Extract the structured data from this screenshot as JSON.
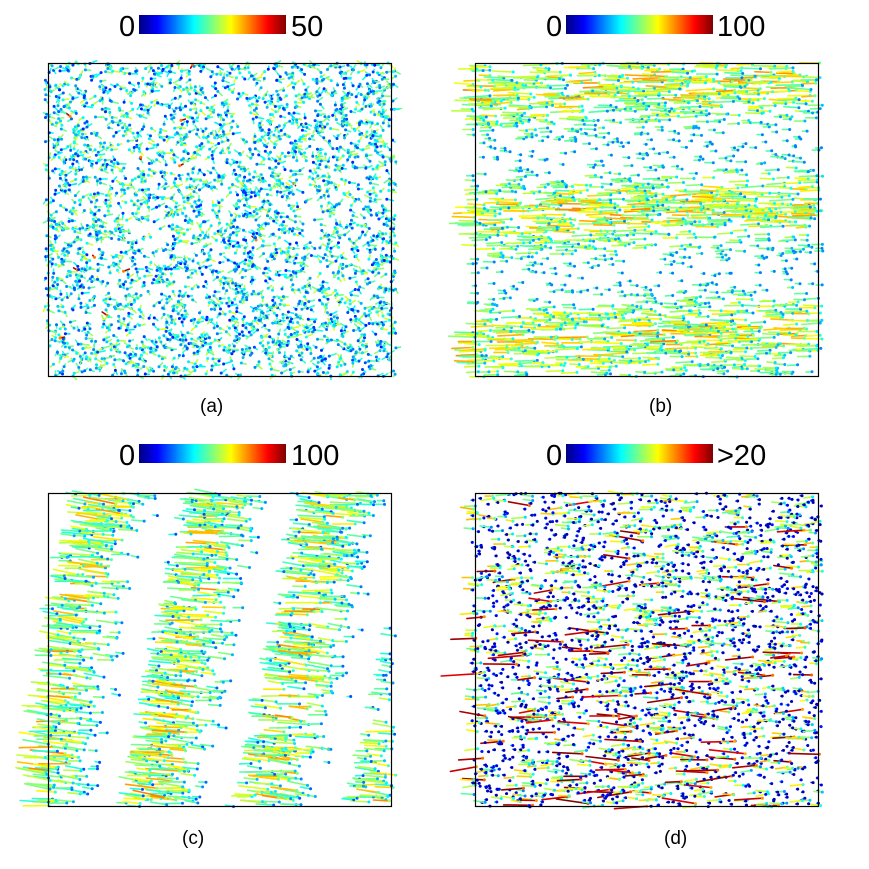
{
  "panels": [
    {
      "id": "a",
      "caption": "(a)",
      "scale_min": "0",
      "scale_max": "50",
      "pattern": "uniform",
      "density": 2800
    },
    {
      "id": "b",
      "caption": "(b)",
      "scale_min": "0",
      "scale_max": "100",
      "pattern": "lanes",
      "density": 2600
    },
    {
      "id": "c",
      "caption": "(c)",
      "scale_min": "0",
      "scale_max": "100",
      "pattern": "columns",
      "density": 2400
    },
    {
      "id": "d",
      "caption": "(d)",
      "scale_min": "0",
      "scale_max": ">20",
      "pattern": "sparse",
      "density": 2600
    }
  ],
  "colormap": [
    "#00007f",
    "#0000ff",
    "#007fff",
    "#00ffff",
    "#7fff7f",
    "#ffff00",
    "#ff7f00",
    "#ff0000",
    "#7f0000"
  ]
}
